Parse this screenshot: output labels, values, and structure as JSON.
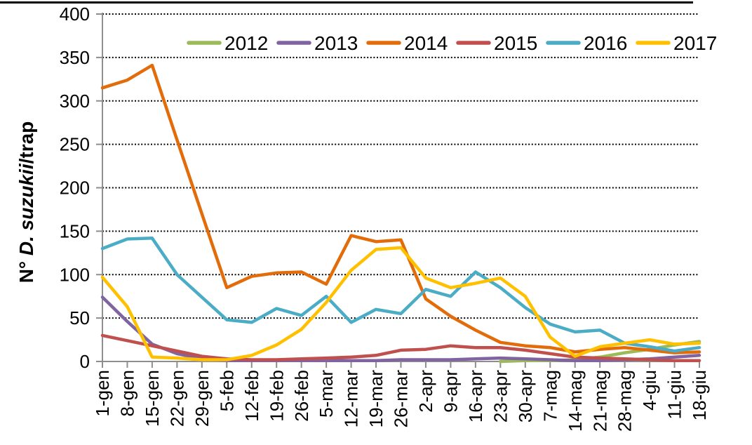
{
  "figure": {
    "y_axis_title": {
      "prefix": "N° ",
      "italic": "D. suzukii",
      "suffix": "/trap"
    }
  },
  "chart_data": {
    "type": "line",
    "title": "",
    "xlabel": "",
    "ylabel": "N° D. suzukii/trap",
    "ylim": [
      0,
      400
    ],
    "y_ticks": [
      400,
      350,
      300,
      250,
      200,
      150,
      100,
      50,
      0
    ],
    "grid": "horizontal dotted black",
    "legend_position": "top",
    "categories": [
      "1-gen",
      "8-gen",
      "15-gen",
      "22-gen",
      "29-gen",
      "5-feb",
      "12-feb",
      "19-feb",
      "26-feb",
      "5-mar",
      "12-mar",
      "19-mar",
      "26-mar",
      "2-apr",
      "9-apr",
      "16-apr",
      "23-apr",
      "30-apr",
      "7-mag",
      "14-mag",
      "21-mag",
      "28-mag",
      "4-giu",
      "11-giu",
      "18-giu"
    ],
    "series": [
      {
        "name": "2012",
        "color": "#9BBB59",
        "values": [
          null,
          null,
          null,
          null,
          null,
          null,
          null,
          null,
          null,
          null,
          null,
          null,
          null,
          null,
          null,
          null,
          0,
          1,
          1,
          2,
          5,
          10,
          14,
          19,
          23
        ]
      },
      {
        "name": "2013",
        "color": "#8064A2",
        "values": [
          74,
          46,
          20,
          9,
          3,
          1,
          1,
          1,
          1,
          1,
          1,
          1,
          2,
          2,
          2,
          3,
          4,
          3,
          2,
          1,
          1,
          2,
          3,
          5,
          7
        ]
      },
      {
        "name": "2014",
        "color": "#E36C0A",
        "values": [
          315,
          324,
          341,
          255,
          170,
          85,
          98,
          102,
          103,
          89,
          145,
          138,
          140,
          72,
          52,
          36,
          22,
          18,
          16,
          11,
          14,
          16,
          13,
          10,
          11
        ]
      },
      {
        "name": "2015",
        "color": "#C0504D",
        "values": [
          30,
          24,
          18,
          12,
          6,
          3,
          2,
          2,
          3,
          4,
          5,
          7,
          13,
          14,
          18,
          16,
          16,
          13,
          9,
          5,
          4,
          3,
          2,
          1,
          1
        ]
      },
      {
        "name": "2016",
        "color": "#4BACC6",
        "values": [
          130,
          141,
          142,
          100,
          74,
          48,
          45,
          61,
          53,
          75,
          45,
          60,
          55,
          83,
          75,
          103,
          85,
          62,
          43,
          34,
          36,
          21,
          17,
          12,
          16
        ]
      },
      {
        "name": "2017",
        "color": "#FFC000",
        "values": [
          97,
          63,
          5,
          4,
          2,
          2,
          7,
          19,
          37,
          68,
          105,
          129,
          131,
          96,
          85,
          90,
          96,
          75,
          28,
          6,
          17,
          21,
          25,
          20,
          21
        ]
      }
    ]
  },
  "colors": {
    "background": "#FFFFFF",
    "axis": "#8E8E8E",
    "gridline": "#000000",
    "text": "#000000",
    "top_border": "#000000"
  }
}
